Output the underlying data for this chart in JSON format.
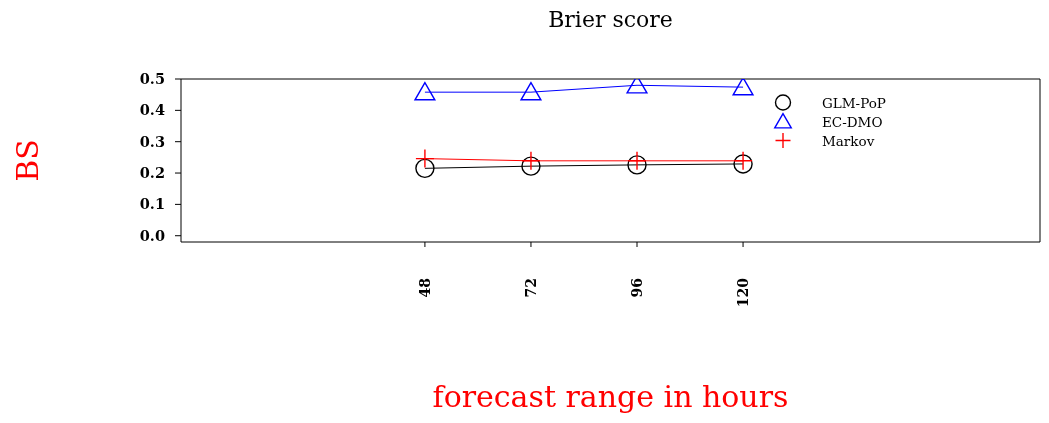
{
  "chart_data": {
    "type": "line",
    "title": "Brier score",
    "xlabel": "forecast range in hours",
    "ylabel": "BS",
    "x": [
      48,
      72,
      96,
      120
    ],
    "xlim": [
      -7.2,
      187.2
    ],
    "xticks": [
      48,
      72,
      96,
      120
    ],
    "ylim": [
      -0.02,
      0.5
    ],
    "yticks": [
      {
        "value": 0,
        "label": "0.0"
      },
      0.1,
      0.2,
      0.3,
      0.4,
      0.5
    ],
    "series": [
      {
        "name": "GLM-PoP",
        "color": "#000000",
        "marker": "circle",
        "values": [
          0.215,
          0.222,
          0.226,
          0.229
        ]
      },
      {
        "name": "EC-DMO",
        "color": "#0000ff",
        "marker": "triangle",
        "values": [
          0.458,
          0.458,
          0.48,
          0.474
        ]
      },
      {
        "name": "Markov",
        "color": "#ff0000",
        "marker": "cross",
        "values": [
          0.246,
          0.239,
          0.239,
          0.239
        ]
      }
    ],
    "legend": "top right"
  }
}
